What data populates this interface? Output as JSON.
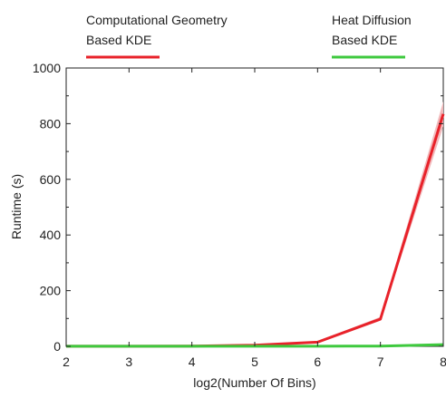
{
  "chart_data": {
    "type": "line",
    "title": "",
    "xlabel": "log2(Number Of Bins)",
    "ylabel": "Runtime (s)",
    "xlim": [
      2,
      8
    ],
    "ylim": [
      0,
      1000
    ],
    "x_ticks": [
      "2",
      "3",
      "4",
      "5",
      "6",
      "7",
      "8"
    ],
    "y_ticks": [
      "0",
      "200",
      "400",
      "600",
      "800",
      "1000"
    ],
    "grid": false,
    "legend_position": "top",
    "x": [
      2,
      3,
      4,
      5,
      6,
      7,
      8
    ],
    "series": [
      {
        "name": "Computational Geometry Based KDE",
        "legend_lines": [
          "Computational Geometry",
          "Based KDE"
        ],
        "color": "#e8222a",
        "band_color": "#f2b9bb",
        "values": [
          0.5,
          0.5,
          1,
          4,
          15,
          98,
          835
        ],
        "lower": [
          0.3,
          0.3,
          0.7,
          3,
          12,
          92,
          790
        ],
        "upper": [
          0.7,
          0.7,
          1.3,
          5,
          18,
          106,
          880
        ]
      },
      {
        "name": "Heat Diffusion Based KDE",
        "legend_lines": [
          "Heat Diffusion",
          "Based KDE"
        ],
        "color": "#3ec93e",
        "band_color": "#b8ecb8",
        "values": [
          0.3,
          0.3,
          0.3,
          0.3,
          0.5,
          1,
          6
        ],
        "lower": [
          0.2,
          0.2,
          0.2,
          0.2,
          0.3,
          0.7,
          4
        ],
        "upper": [
          0.4,
          0.4,
          0.4,
          0.4,
          0.7,
          1.3,
          8
        ]
      }
    ]
  }
}
